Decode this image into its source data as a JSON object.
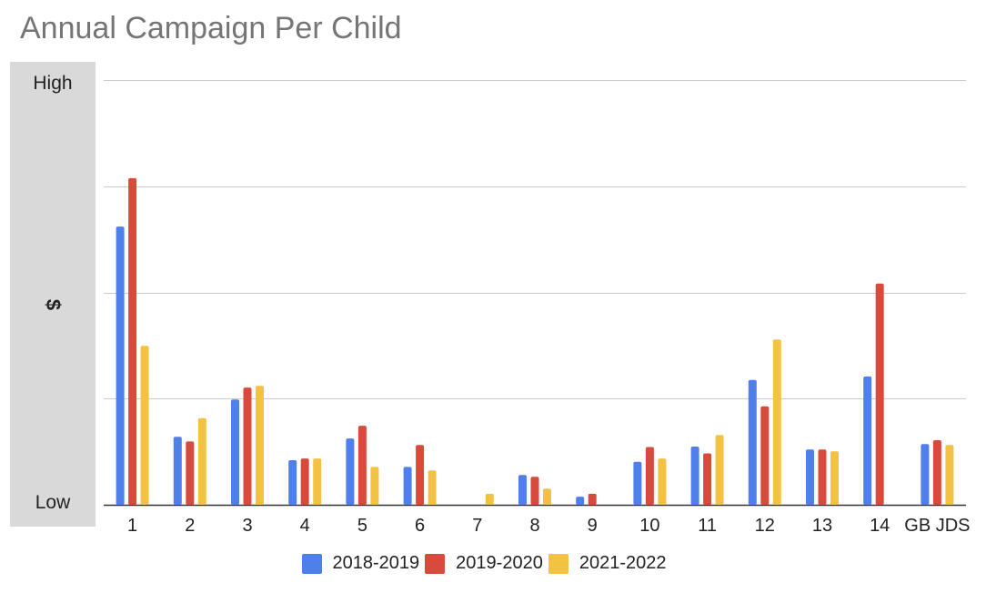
{
  "colors": {
    "series_2018_2019": "#4e7fea",
    "series_2019_2020": "#d84b3c",
    "series_2021_2022": "#f4c242",
    "grid": "#cccccc",
    "axis_panel": "#d9d9d9",
    "title": "#757575",
    "text": "#222222"
  },
  "chart_data": {
    "type": "bar",
    "title": "Annual Campaign Per Child",
    "xlabel": "",
    "ylabel": "$",
    "y_tick_labels": {
      "high": "High",
      "low": "Low"
    },
    "ylim": [
      0,
      100
    ],
    "grid": true,
    "legend_position": "bottom",
    "categories": [
      "1",
      "2",
      "3",
      "4",
      "5",
      "6",
      "7",
      "8",
      "9",
      "10",
      "11",
      "12",
      "13",
      "14",
      "GB JDS"
    ],
    "series": [
      {
        "name": "2018-2019",
        "color": "#4e7fea",
        "values": [
          65.5,
          16,
          24.8,
          10.5,
          15.6,
          8.9,
          null,
          7,
          1.9,
          10.1,
          13.7,
          29.4,
          13,
          30.2,
          14.3
        ]
      },
      {
        "name": "2019-2020",
        "color": "#d84b3c",
        "values": [
          76.9,
          14.9,
          27.6,
          10.9,
          18.6,
          14.1,
          null,
          6.6,
          2.6,
          13.6,
          12.1,
          23.2,
          13,
          52.1,
          15.2
        ]
      },
      {
        "name": "2021-2022",
        "color": "#f4c242",
        "values": [
          37.4,
          20.4,
          28,
          10.9,
          8.9,
          8.1,
          2.6,
          3.8,
          null,
          10.9,
          16.4,
          38.9,
          12.6,
          null,
          14.1
        ]
      }
    ]
  }
}
